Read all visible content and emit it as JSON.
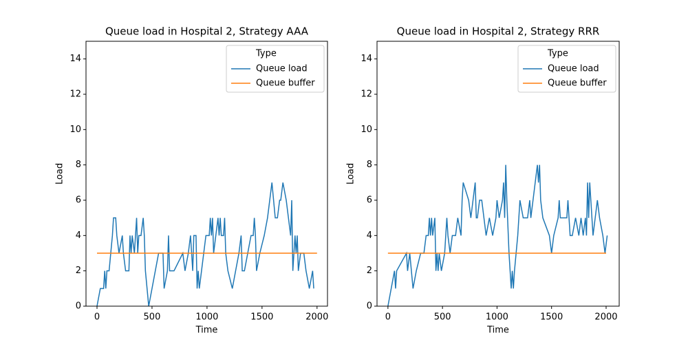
{
  "chart_data": [
    {
      "type": "line",
      "title": "Queue load in Hospital 2, Strategy AAA",
      "xlabel": "Time",
      "ylabel": "Load",
      "xlim": [
        -100,
        2095
      ],
      "ylim": [
        0,
        15
      ],
      "xticks": [
        0,
        500,
        1000,
        1500,
        2000
      ],
      "yticks": [
        0,
        2,
        4,
        6,
        8,
        10,
        12,
        14
      ],
      "grid": false,
      "legend": "upper right",
      "legend_title": "Type",
      "series": [
        {
          "name": "Queue load",
          "color": "#1f77b4",
          "x": [
            0,
            30,
            60,
            70,
            80,
            90,
            110,
            140,
            150,
            170,
            180,
            200,
            230,
            240,
            260,
            290,
            300,
            310,
            320,
            340,
            350,
            360,
            370,
            380,
            400,
            420,
            430,
            440,
            470,
            500,
            530,
            560,
            600,
            610,
            640,
            650,
            660,
            700,
            780,
            800,
            830,
            850,
            870,
            880,
            900,
            910,
            920,
            930,
            950,
            990,
            1020,
            1030,
            1040,
            1050,
            1060,
            1080,
            1100,
            1110,
            1120,
            1130,
            1150,
            1160,
            1170,
            1190,
            1230,
            1260,
            1290,
            1310,
            1320,
            1340,
            1370,
            1400,
            1420,
            1430,
            1440,
            1450,
            1480,
            1520,
            1550,
            1570,
            1590,
            1620,
            1640,
            1660,
            1670,
            1690,
            1720,
            1740,
            1760,
            1770,
            1780,
            1790,
            1800,
            1810,
            1820,
            1830,
            1850,
            1880,
            1900,
            1930,
            1960,
            1970
          ],
          "values": [
            0,
            1,
            1,
            2,
            1,
            2,
            2,
            4,
            5,
            5,
            4,
            3,
            4,
            3,
            2,
            2,
            4,
            3,
            4,
            3,
            4,
            5,
            3,
            4,
            4,
            5,
            4,
            2,
            0,
            1,
            2,
            3,
            3,
            1,
            2,
            4,
            2,
            2,
            3,
            2,
            3,
            4,
            2,
            4,
            4,
            1,
            2,
            1,
            2,
            4,
            4,
            5,
            4,
            5,
            3,
            4,
            5,
            4,
            5,
            4,
            4,
            5,
            3,
            2,
            1,
            2,
            3,
            4,
            2,
            2,
            3,
            4,
            4,
            5,
            4,
            2,
            3,
            4,
            5,
            6,
            7,
            5,
            5,
            6,
            6,
            7,
            6,
            5,
            4,
            6,
            2,
            3,
            4,
            3,
            4,
            2,
            3,
            3,
            2,
            1,
            2,
            1
          ]
        },
        {
          "name": "Queue buffer",
          "color": "#ff7f0e",
          "x": [
            0,
            2000
          ],
          "values": [
            3,
            3
          ]
        }
      ]
    },
    {
      "type": "line",
      "title": "Queue load in Hospital 2, Strategy RRR",
      "xlabel": "Time",
      "ylabel": "Load",
      "xlim": [
        -100,
        2120
      ],
      "ylim": [
        0,
        15
      ],
      "xticks": [
        0,
        500,
        1000,
        1500,
        2000
      ],
      "yticks": [
        0,
        2,
        4,
        6,
        8,
        10,
        12,
        14
      ],
      "grid": false,
      "legend": "upper right",
      "legend_title": "Type",
      "series": [
        {
          "name": "Queue load",
          "color": "#1f77b4",
          "x": [
            0,
            30,
            60,
            70,
            80,
            170,
            180,
            200,
            230,
            260,
            300,
            330,
            350,
            370,
            380,
            390,
            400,
            410,
            430,
            440,
            450,
            460,
            470,
            490,
            520,
            540,
            550,
            570,
            590,
            620,
            640,
            670,
            680,
            690,
            740,
            760,
            800,
            810,
            820,
            840,
            860,
            880,
            900,
            930,
            960,
            990,
            1000,
            1020,
            1050,
            1060,
            1070,
            1080,
            1090,
            1110,
            1130,
            1140,
            1150,
            1160,
            1190,
            1210,
            1240,
            1280,
            1300,
            1310,
            1350,
            1370,
            1380,
            1390,
            1400,
            1420,
            1480,
            1500,
            1520,
            1560,
            1570,
            1580,
            1640,
            1650,
            1660,
            1670,
            1690,
            1720,
            1750,
            1770,
            1790,
            1810,
            1820,
            1830,
            1840,
            1850,
            1860,
            1870,
            1880,
            1900,
            1920,
            1940,
            1970,
            1990,
            2010
          ],
          "values": [
            0,
            1,
            2,
            1,
            2,
            3,
            2,
            3,
            1,
            2,
            3,
            3,
            4,
            4,
            5,
            4,
            5,
            4,
            5,
            2,
            3,
            2,
            3,
            2,
            3,
            5,
            4,
            3,
            4,
            4,
            5,
            4,
            6,
            7,
            6,
            5,
            7,
            5,
            5,
            6,
            6,
            5,
            4,
            5,
            4,
            5,
            6,
            5,
            6,
            7,
            5,
            8,
            6,
            3,
            1,
            2,
            1,
            2,
            4,
            6,
            5,
            5,
            6,
            5,
            7,
            8,
            7,
            8,
            6,
            5,
            4,
            3,
            4,
            5,
            6,
            5,
            5,
            6,
            5,
            4,
            4,
            5,
            4,
            5,
            4,
            5,
            4,
            7,
            5,
            7,
            6,
            5,
            4,
            5,
            6,
            5,
            4,
            3,
            4
          ]
        },
        {
          "name": "Queue buffer",
          "color": "#ff7f0e",
          "x": [
            0,
            2000
          ],
          "values": [
            3,
            3
          ]
        }
      ]
    }
  ]
}
